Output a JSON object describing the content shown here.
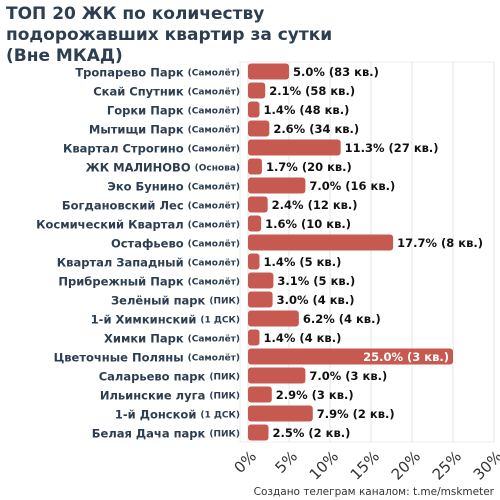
{
  "chart_data": {
    "type": "hbar",
    "title": "ТОП 20 ЖК по количеству подорожавших квартир за сутки (Вне МКАД)",
    "categories": [
      "Тропарево Парк",
      "Скай Спутник",
      "Горки Парк",
      "Мытищи Парк",
      "Квартал Строгино",
      "ЖК МАЛИНОВО",
      "Эко Бунино",
      "Богдановский Лес",
      "Космический Квартал",
      "Остафьево",
      "Квартал Западный",
      "Прибрежный Парк",
      "Зелёный парк",
      "1-й Химкинский",
      "Химки Парк",
      "Цветочные Поляны",
      "Саларьево парк",
      "Ильинские луга",
      "1-й Донской",
      "Белая Дача парк"
    ],
    "developers": [
      "(Самолёт)",
      "(Самолёт)",
      "(Самолёт)",
      "(Самолёт)",
      "(Самолёт)",
      "(Основа)",
      "(Самолёт)",
      "(Самолёт)",
      "(Самолёт)",
      "(Самолёт)",
      "(Самолёт)",
      "(Самолёт)",
      "(ПИК)",
      "(1 ДСК)",
      "(Самолёт)",
      "(Самолёт)",
      "(ПИК)",
      "(ПИК)",
      "(1 ДСК)",
      "(ПИК)"
    ],
    "values": [
      5.0,
      2.1,
      1.4,
      2.6,
      11.3,
      1.7,
      7.0,
      2.4,
      1.6,
      17.7,
      1.4,
      3.1,
      3.0,
      6.2,
      1.4,
      25.0,
      7.0,
      2.9,
      7.9,
      2.5
    ],
    "value_labels": [
      "5.0% (83 кв.)",
      "2.1% (58 кв.)",
      "1.4% (48 кв.)",
      "2.6% (34 кв.)",
      "11.3% (27 кв.)",
      "1.7% (20 кв.)",
      "7.0% (16 кв.)",
      "2.4% (12 кв.)",
      "1.6% (10 кв.)",
      "17.7% (8 кв.)",
      "1.4% (5 кв.)",
      "3.1% (5 кв.)",
      "3.0% (4 кв.)",
      "6.2% (4 кв.)",
      "1.4% (4 кв.)",
      "25.0% (3 кв.)",
      "7.0% (3 кв.)",
      "2.9% (3 кв.)",
      "7.9% (2 кв.)",
      "2.5% (2 кв.)"
    ],
    "color": "#c65a50",
    "xlim": [
      0,
      30
    ],
    "xticks": [
      {
        "value": 0,
        "label": "0%"
      },
      {
        "value": 5,
        "label": "5%"
      },
      {
        "value": 10,
        "label": "10%"
      },
      {
        "value": 15,
        "label": "15%"
      },
      {
        "value": 20,
        "label": "20%"
      },
      {
        "value": 25,
        "label": "25%"
      },
      {
        "value": 30,
        "label": "30%"
      }
    ],
    "grid": true,
    "source": "Создано телеграм каналом: t.me/mskmeter"
  }
}
